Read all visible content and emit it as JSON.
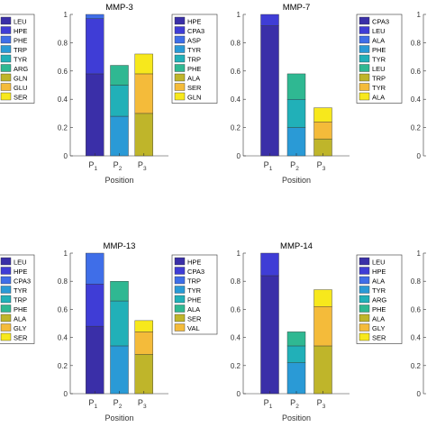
{
  "palette": {
    "LEU": "#3a2fa8",
    "HPE": "#3f3dd6",
    "PHE": "#3f6ee8",
    "TRP": "#2a9ad6",
    "TYR": "#21b0b8",
    "ARG": "#2fb892",
    "GLN": "#bfb52a",
    "GLU": "#f4bb3a",
    "SER": "#f7e81c",
    "CPA3": "#3f6ee8",
    "ASP": "#2a9ad6",
    "ALA": "#c9b53a",
    "GLY": "#f4cf3a",
    "VAL": "#f7e81c"
  },
  "chart_data": [
    {
      "type": "bar",
      "title": "",
      "xlabel": "",
      "ylabel": "",
      "categories": [],
      "ylim": [
        0,
        1
      ],
      "legend": [
        "LEU",
        "HPE",
        "PHE",
        "TRP",
        "TYR",
        "ARG",
        "GLN",
        "GLU",
        "SER"
      ],
      "legend_colors": [
        "LEU",
        "HPE",
        "PHE",
        "TRP",
        "TYR",
        "ARG",
        "GLN",
        "GLU",
        "SER"
      ],
      "bars": []
    },
    {
      "type": "bar",
      "title": "MMP-3",
      "xlabel": "Position",
      "ylabel": "",
      "categories": [
        "P1",
        "P2",
        "P3"
      ],
      "category_base": [
        "P",
        "P",
        "P"
      ],
      "category_sub": [
        "1",
        "2",
        "3"
      ],
      "ylim": [
        0,
        1
      ],
      "yticks": [
        "0",
        "0.2",
        "0.4",
        "0.6",
        "0.8",
        "1"
      ],
      "legend": [
        "HPE",
        "CPA3",
        "ASP",
        "TYR",
        "TRP",
        "PHE",
        "ALA",
        "SER",
        "GLN"
      ],
      "legend_colors": [
        "LEU",
        "HPE",
        "PHE",
        "TRP",
        "TYR",
        "ARG",
        "GLN",
        "GLU",
        "SER"
      ],
      "bars": [
        [
          {
            "residue": "LEU",
            "value": 0.58
          },
          {
            "residue": "HPE",
            "value": 0.39
          },
          {
            "residue": "PHE",
            "value": 0.03
          }
        ],
        [
          {
            "residue": "TRP",
            "value": 0.28
          },
          {
            "residue": "TYR",
            "value": 0.22
          },
          {
            "residue": "ARG",
            "value": 0.14
          }
        ],
        [
          {
            "residue": "GLN",
            "value": 0.3
          },
          {
            "residue": "GLU",
            "value": 0.28
          },
          {
            "residue": "SER",
            "value": 0.14
          }
        ]
      ]
    },
    {
      "type": "bar",
      "title": "MMP-7",
      "xlabel": "Position",
      "ylabel": "",
      "categories": [
        "P1",
        "P2",
        "P3"
      ],
      "category_base": [
        "P",
        "P",
        "P"
      ],
      "category_sub": [
        "1",
        "2",
        "3"
      ],
      "ylim": [
        0,
        1
      ],
      "yticks": [
        "0",
        "0.2",
        "0.4",
        "0.6",
        "0.8",
        "1"
      ],
      "legend": [
        "CPA3",
        "LEU",
        "ALA",
        "PHE",
        "TYR",
        "LEU",
        "TRP",
        "TYR",
        "ALA"
      ],
      "legend_colors": [
        "LEU",
        "HPE",
        "PHE",
        "TRP",
        "TYR",
        "ARG",
        "GLN",
        "GLU",
        "SER"
      ],
      "bars": [
        [
          {
            "residue": "LEU",
            "value": 0.92
          },
          {
            "residue": "HPE",
            "value": 0.08
          }
        ],
        [
          {
            "residue": "TRP",
            "value": 0.2
          },
          {
            "residue": "TYR",
            "value": 0.2
          },
          {
            "residue": "ARG",
            "value": 0.18
          }
        ],
        [
          {
            "residue": "GLN",
            "value": 0.12
          },
          {
            "residue": "GLU",
            "value": 0.12
          },
          {
            "residue": "SER",
            "value": 0.1
          }
        ]
      ]
    },
    {
      "type": "bar",
      "title": "",
      "xlabel": "",
      "ylabel": "",
      "categories": [],
      "ylim": [
        0,
        1
      ],
      "yticks": [
        "0",
        "0.2",
        "0.4",
        "0.6",
        "0.8",
        "1"
      ],
      "legend": [],
      "bars": []
    },
    {
      "type": "bar",
      "title": "",
      "xlabel": "",
      "ylabel": "",
      "categories": [],
      "ylim": [
        0,
        1
      ],
      "legend": [
        "LEU",
        "HPE",
        "CPA3",
        "TYR",
        "TRP",
        "PHE",
        "ALA",
        "GLY",
        "SER"
      ],
      "legend_colors": [
        "LEU",
        "HPE",
        "PHE",
        "TRP",
        "TYR",
        "ARG",
        "GLN",
        "GLU",
        "SER"
      ],
      "bars": []
    },
    {
      "type": "bar",
      "title": "MMP-13",
      "xlabel": "Position",
      "ylabel": "",
      "categories": [
        "P1",
        "P2",
        "P3"
      ],
      "category_base": [
        "P",
        "P",
        "P"
      ],
      "category_sub": [
        "1",
        "2",
        "3"
      ],
      "ylim": [
        0,
        1
      ],
      "yticks": [
        "0",
        "0.2",
        "0.4",
        "0.6",
        "0.8",
        "1"
      ],
      "legend": [
        "HPE",
        "CPA3",
        "TRP",
        "TYR",
        "PHE",
        "ALA",
        "SER",
        "VAL"
      ],
      "legend_colors": [
        "LEU",
        "HPE",
        "PHE",
        "TRP",
        "TYR",
        "ARG",
        "GLN",
        "GLU"
      ],
      "bars": [
        [
          {
            "residue": "LEU",
            "value": 0.48
          },
          {
            "residue": "HPE",
            "value": 0.3
          },
          {
            "residue": "PHE",
            "value": 0.22
          }
        ],
        [
          {
            "residue": "TRP",
            "value": 0.34
          },
          {
            "residue": "TYR",
            "value": 0.32
          },
          {
            "residue": "ARG",
            "value": 0.14
          }
        ],
        [
          {
            "residue": "GLN",
            "value": 0.28
          },
          {
            "residue": "GLU",
            "value": 0.16
          },
          {
            "residue": "SER",
            "value": 0.08
          }
        ]
      ]
    },
    {
      "type": "bar",
      "title": "MMP-14",
      "xlabel": "Position",
      "ylabel": "",
      "categories": [
        "P1",
        "P2",
        "P3"
      ],
      "category_base": [
        "P",
        "P",
        "P"
      ],
      "category_sub": [
        "1",
        "2",
        "3"
      ],
      "ylim": [
        0,
        1
      ],
      "yticks": [
        "0",
        "0.2",
        "0.4",
        "0.6",
        "0.8",
        "1"
      ],
      "legend": [
        "LEU",
        "HPE",
        "ALA",
        "TYR",
        "ARG",
        "PHE",
        "ALA",
        "GLY",
        "SER"
      ],
      "legend_colors": [
        "LEU",
        "HPE",
        "PHE",
        "TRP",
        "TYR",
        "ARG",
        "GLN",
        "GLU",
        "SER"
      ],
      "bars": [
        [
          {
            "residue": "LEU",
            "value": 0.84
          },
          {
            "residue": "HPE",
            "value": 0.16
          }
        ],
        [
          {
            "residue": "TRP",
            "value": 0.22
          },
          {
            "residue": "TYR",
            "value": 0.12
          },
          {
            "residue": "ARG",
            "value": 0.1
          }
        ],
        [
          {
            "residue": "GLN",
            "value": 0.34
          },
          {
            "residue": "GLU",
            "value": 0.28
          },
          {
            "residue": "SER",
            "value": 0.12
          }
        ]
      ]
    },
    {
      "type": "bar",
      "title": "",
      "xlabel": "",
      "ylabel": "",
      "categories": [],
      "ylim": [
        0,
        1
      ],
      "yticks": [
        "0",
        "0.2",
        "0.4",
        "0.6",
        "0.8",
        "1"
      ],
      "legend": [],
      "bars": []
    }
  ]
}
